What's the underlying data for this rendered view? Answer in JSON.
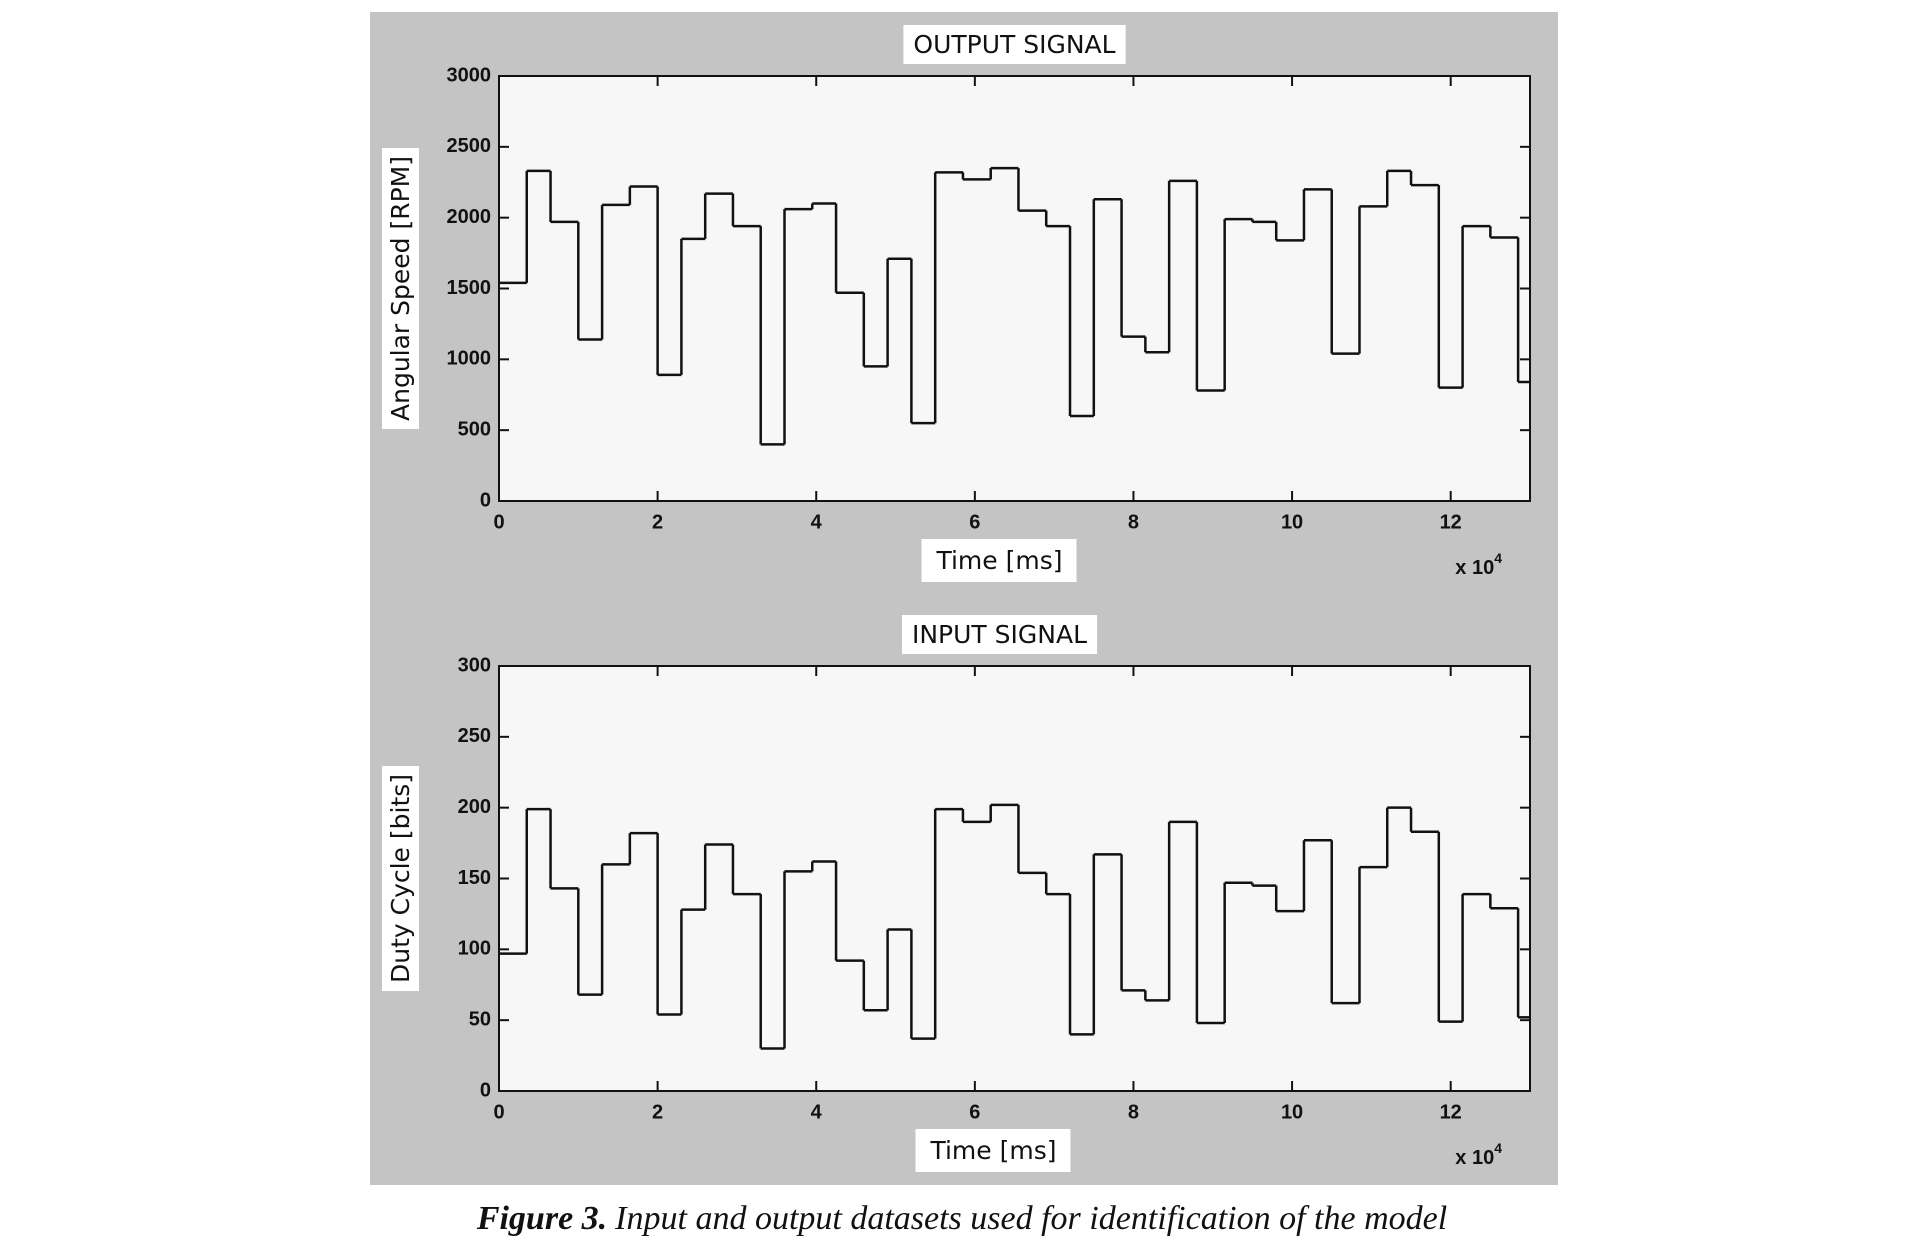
{
  "chart_data": [
    {
      "type": "step",
      "title": "OUTPUT SIGNAL",
      "xlabel": "Time [ms]",
      "ylabel": "Angular Speed [RPM]",
      "x_multiplier": {
        "base": "x 10",
        "exponent": "4"
      },
      "x": [
        0,
        0.35,
        0.65,
        1.0,
        1.3,
        1.65,
        2.0,
        2.3,
        2.6,
        2.95,
        3.3,
        3.6,
        3.95,
        4.25,
        4.6,
        4.9,
        5.2,
        5.5,
        5.85,
        6.2,
        6.55,
        6.9,
        7.2,
        7.5,
        7.85,
        8.15,
        8.45,
        8.8,
        9.15,
        9.5,
        9.8,
        10.15,
        10.5,
        10.85,
        11.2,
        11.5,
        11.85,
        12.15,
        12.5,
        12.85
      ],
      "values": [
        1540,
        2330,
        1970,
        1140,
        2090,
        2220,
        890,
        1850,
        2170,
        1940,
        400,
        2060,
        2100,
        1470,
        950,
        1710,
        550,
        2320,
        2270,
        2350,
        2050,
        1940,
        600,
        2130,
        1160,
        1050,
        2260,
        780,
        1990,
        1970,
        1840,
        2200,
        1040,
        2080,
        2330,
        2230,
        800,
        1940,
        1860,
        840
      ],
      "color": "#111111",
      "xlim": [
        0,
        13
      ],
      "xticks": [
        0,
        2,
        4,
        6,
        8,
        10,
        12
      ],
      "ylim": [
        0,
        3000
      ],
      "yticks": [
        0,
        500,
        1000,
        1500,
        2000,
        2500,
        3000
      ]
    },
    {
      "type": "step",
      "title": "INPUT SIGNAL",
      "xlabel": "Time [ms]",
      "ylabel": "Duty Cycle [bits]",
      "x_multiplier": {
        "base": "x 10",
        "exponent": "4"
      },
      "x": [
        0,
        0.35,
        0.65,
        1.0,
        1.3,
        1.65,
        2.0,
        2.3,
        2.6,
        2.95,
        3.3,
        3.6,
        3.95,
        4.25,
        4.6,
        4.9,
        5.2,
        5.5,
        5.85,
        6.2,
        6.55,
        6.9,
        7.2,
        7.5,
        7.85,
        8.15,
        8.45,
        8.8,
        9.15,
        9.5,
        9.8,
        10.15,
        10.5,
        10.85,
        11.2,
        11.5,
        11.85,
        12.15,
        12.5,
        12.85
      ],
      "values": [
        97,
        199,
        143,
        68,
        160,
        182,
        54,
        128,
        174,
        139,
        30,
        155,
        162,
        92,
        57,
        114,
        37,
        199,
        190,
        202,
        154,
        139,
        40,
        167,
        71,
        64,
        190,
        48,
        147,
        145,
        127,
        177,
        62,
        158,
        200,
        183,
        49,
        139,
        129,
        52
      ],
      "color": "#111111",
      "xlim": [
        0,
        13
      ],
      "xticks": [
        0,
        2,
        4,
        6,
        8,
        10,
        12
      ],
      "ylim": [
        0,
        300
      ],
      "yticks": [
        0,
        50,
        100,
        150,
        200,
        250,
        300
      ]
    }
  ],
  "caption": {
    "label": "Figure 3.",
    "text": "Input and output datasets used for identification of the model"
  }
}
